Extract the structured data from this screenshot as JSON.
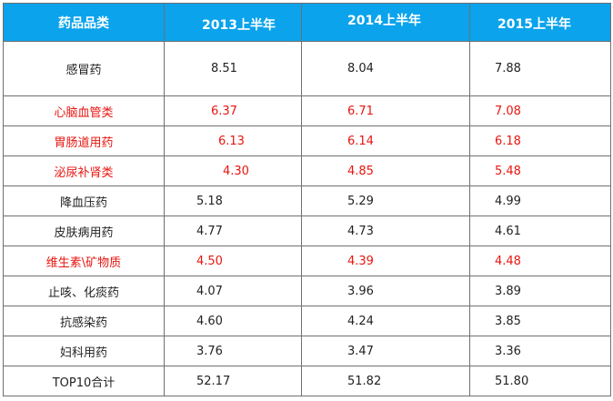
{
  "table": {
    "headers": [
      "药品品类",
      "2013上半年",
      "2014上半年",
      "2015上半年"
    ],
    "rows": [
      {
        "name": "感冒药",
        "values": [
          "8.51",
          "8.04",
          "7.88"
        ],
        "highlight": false
      },
      {
        "name": "心脑血管类",
        "values": [
          "6.37",
          "6.71",
          "7.08"
        ],
        "highlight": true
      },
      {
        "name": "胃肠道用药",
        "values": [
          "6.13",
          "6.14",
          "6.18"
        ],
        "highlight": true
      },
      {
        "name": "泌尿补肾类",
        "values": [
          "4.30",
          "4.85",
          "5.48"
        ],
        "highlight": true
      },
      {
        "name": "降血压药",
        "values": [
          "5.18",
          "5.29",
          "4.99"
        ],
        "highlight": false
      },
      {
        "name": "皮肤病用药",
        "values": [
          "4.77",
          "4.73",
          "4.61"
        ],
        "highlight": false
      },
      {
        "name": "维生素\\矿物质",
        "values": [
          "4.50",
          "4.39",
          "4.48"
        ],
        "highlight": true
      },
      {
        "name": "止咳、化痰药",
        "values": [
          "4.07",
          "3.96",
          "3.89"
        ],
        "highlight": false
      },
      {
        "name": "抗感染药",
        "values": [
          "4.60",
          "4.24",
          "3.85"
        ],
        "highlight": false
      },
      {
        "name": "妇科用药",
        "values": [
          "3.76",
          "3.47",
          "3.36"
        ],
        "highlight": false
      },
      {
        "name": "TOP10合计",
        "values": [
          "52.17",
          "51.82",
          "51.80"
        ],
        "highlight": false
      }
    ]
  },
  "colors": {
    "header_bg": "#0aa3ec",
    "header_text": "#ffffff",
    "highlight_text": "#e8150f",
    "border": "#707070"
  }
}
